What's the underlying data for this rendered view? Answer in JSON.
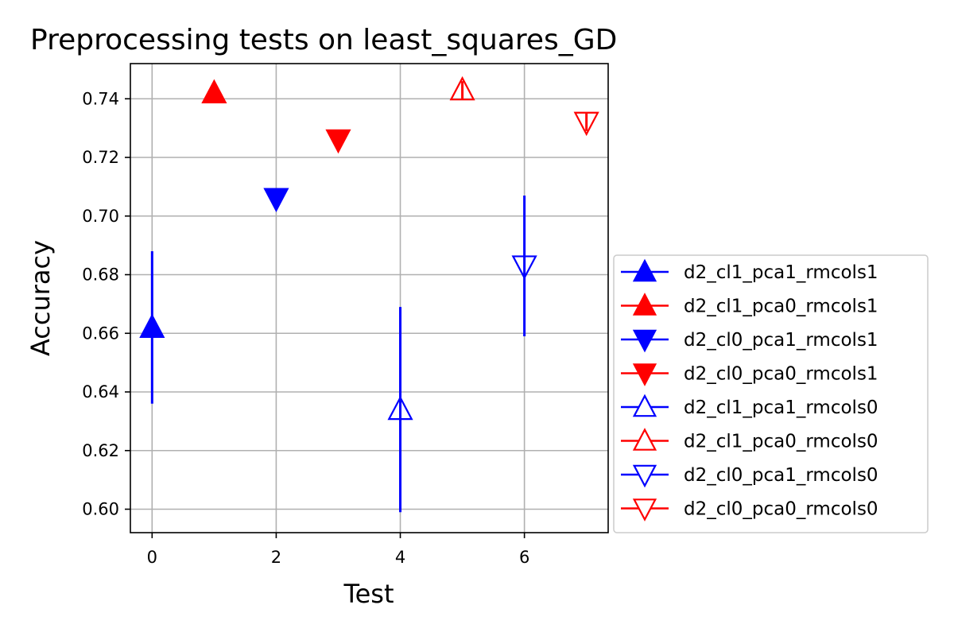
{
  "chart_data": {
    "type": "scatter",
    "title": "Preprocessing tests on least_squares_GD",
    "xlabel": "Test",
    "ylabel": "Accuracy",
    "xlim": [
      -0.35,
      7.35
    ],
    "ylim": [
      0.592,
      0.752
    ],
    "xticks": [
      "0",
      "2",
      "4",
      "6"
    ],
    "yticks": [
      "0.60",
      "0.62",
      "0.64",
      "0.66",
      "0.68",
      "0.70",
      "0.72",
      "0.74"
    ],
    "grid": true,
    "legend_position": "outside-right",
    "series": [
      {
        "name": "d2_cl1_pca1_rmcols1",
        "color": "#0000ff",
        "marker": "triangle-up",
        "filled": true,
        "x": 0,
        "y": 0.662,
        "yerr_low": 0.636,
        "yerr_high": 0.688
      },
      {
        "name": "d2_cl1_pca0_rmcols1",
        "color": "#ff0000",
        "marker": "triangle-up",
        "filled": true,
        "x": 1,
        "y": 0.742,
        "yerr_low": 0.742,
        "yerr_high": 0.742
      },
      {
        "name": "d2_cl0_pca1_rmcols1",
        "color": "#0000ff",
        "marker": "triangle-down",
        "filled": true,
        "x": 2,
        "y": 0.706,
        "yerr_low": 0.705,
        "yerr_high": 0.709
      },
      {
        "name": "d2_cl0_pca0_rmcols1",
        "color": "#ff0000",
        "marker": "triangle-down",
        "filled": true,
        "x": 3,
        "y": 0.726,
        "yerr_low": 0.726,
        "yerr_high": 0.726
      },
      {
        "name": "d2_cl1_pca1_rmcols0",
        "color": "#0000ff",
        "marker": "triangle-up",
        "filled": false,
        "x": 4,
        "y": 0.634,
        "yerr_low": 0.599,
        "yerr_high": 0.669
      },
      {
        "name": "d2_cl1_pca0_rmcols0",
        "color": "#ff0000",
        "marker": "triangle-up",
        "filled": false,
        "x": 5,
        "y": 0.743,
        "yerr_low": 0.74,
        "yerr_high": 0.746
      },
      {
        "name": "d2_cl0_pca1_rmcols0",
        "color": "#0000ff",
        "marker": "triangle-down",
        "filled": false,
        "x": 6,
        "y": 0.683,
        "yerr_low": 0.659,
        "yerr_high": 0.707
      },
      {
        "name": "d2_cl0_pca0_rmcols0",
        "color": "#ff0000",
        "marker": "triangle-down",
        "filled": false,
        "x": 7,
        "y": 0.732,
        "yerr_low": 0.729,
        "yerr_high": 0.735
      }
    ]
  }
}
